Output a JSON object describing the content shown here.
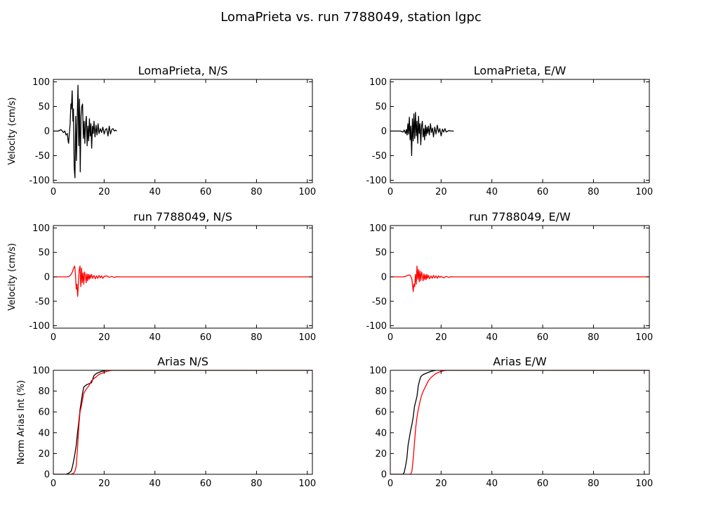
{
  "figure": {
    "title": "LomaPrieta vs. run 7788049, station lgpc"
  },
  "colors": {
    "recorded": "#000000",
    "simulated": "#ff0000"
  },
  "chart_data": [
    {
      "type": "line",
      "title": "LomaPrieta, N/S",
      "xlabel": "",
      "ylabel": "Velocity (cm/s)",
      "xlim": [
        0,
        102
      ],
      "ylim": [
        -105,
        105
      ],
      "xticks": [
        0,
        20,
        40,
        60,
        80,
        100
      ],
      "yticks": [
        100,
        50,
        0,
        -50,
        -100
      ],
      "grid": false,
      "series": [
        {
          "color": "#000000",
          "x": [
            0,
            2,
            3,
            4,
            4.5,
            5,
            5.5,
            5.8,
            6,
            6.3,
            6.6,
            6.9,
            7.1,
            7.4,
            7.7,
            7.9,
            8.2,
            8.5,
            8.8,
            9.1,
            9.4,
            9.7,
            10,
            10.3,
            10.6,
            10.9,
            11.2,
            11.5,
            11.8,
            12.1,
            12.4,
            12.7,
            13,
            13.3,
            13.6,
            13.9,
            14.2,
            14.5,
            14.8,
            15.1,
            15.4,
            15.7,
            16,
            16.4,
            16.8,
            17.2,
            17.6,
            18,
            18.5,
            19,
            19.5,
            20,
            20.5,
            21,
            21.5,
            22,
            22.5,
            23,
            23.5,
            24,
            24.5,
            25
          ],
          "y": [
            0,
            0,
            3,
            -3,
            0,
            -8,
            -5,
            -20,
            -25,
            -5,
            15,
            55,
            45,
            82,
            20,
            45,
            -75,
            -95,
            30,
            -60,
            25,
            93,
            -30,
            65,
            -83,
            30,
            50,
            55,
            -15,
            20,
            -25,
            15,
            30,
            -30,
            10,
            -20,
            25,
            -10,
            15,
            -35,
            10,
            -5,
            20,
            -12,
            12,
            -8,
            15,
            -5,
            5,
            -3,
            8,
            -6,
            3,
            5,
            -10,
            10,
            -6,
            3,
            5,
            0,
            2,
            0
          ]
        }
      ]
    },
    {
      "type": "line",
      "title": "LomaPrieta, E/W",
      "xlabel": "",
      "ylabel": "",
      "xlim": [
        0,
        102
      ],
      "ylim": [
        -105,
        105
      ],
      "xticks": [
        0,
        20,
        40,
        60,
        80,
        100
      ],
      "yticks": [
        100,
        50,
        0,
        -50,
        -100
      ],
      "grid": false,
      "series": [
        {
          "color": "#000000",
          "x": [
            0,
            4,
            5,
            5.5,
            6,
            6.3,
            6.6,
            6.9,
            7.2,
            7.5,
            7.8,
            8.1,
            8.4,
            8.7,
            9,
            9.3,
            9.6,
            9.9,
            10.2,
            10.5,
            10.8,
            11.1,
            11.4,
            11.7,
            12,
            12.3,
            12.6,
            12.9,
            13.2,
            13.5,
            13.8,
            14.1,
            14.4,
            14.7,
            15,
            15.4,
            15.8,
            16.2,
            16.6,
            17,
            17.5,
            18,
            18.5,
            19,
            19.5,
            20,
            20.5,
            21,
            21.5,
            22,
            23,
            24,
            25
          ],
          "y": [
            0,
            0,
            -2,
            2,
            -5,
            3,
            -8,
            15,
            -6,
            28,
            -18,
            10,
            -50,
            25,
            -20,
            35,
            -15,
            38,
            -10,
            20,
            -25,
            30,
            -5,
            15,
            -28,
            10,
            20,
            -12,
            5,
            -18,
            12,
            -10,
            8,
            -5,
            10,
            -8,
            15,
            -3,
            6,
            -12,
            8,
            -6,
            12,
            -3,
            5,
            -10,
            4,
            -2,
            5,
            -2,
            1,
            0,
            0
          ]
        }
      ]
    },
    {
      "type": "line",
      "title": "run 7788049, N/S",
      "xlabel": "",
      "ylabel": "Velocity (cm/s)",
      "xlim": [
        0,
        102
      ],
      "ylim": [
        -105,
        105
      ],
      "xticks": [
        0,
        20,
        40,
        60,
        80,
        100
      ],
      "yticks": [
        100,
        50,
        0,
        -50,
        -100
      ],
      "grid": false,
      "series": [
        {
          "color": "#ff0000",
          "x": [
            0,
            4,
            5,
            6,
            6.5,
            7,
            7.5,
            8,
            8.4,
            8.7,
            9,
            9.3,
            9.6,
            9.9,
            10.2,
            10.5,
            10.8,
            11.1,
            11.4,
            11.7,
            12,
            12.3,
            12.6,
            12.9,
            13.2,
            13.5,
            13.8,
            14.1,
            14.4,
            14.7,
            15,
            15.5,
            16,
            16.5,
            17,
            17.5,
            18,
            18.5,
            19,
            19.5,
            20,
            21,
            22,
            23,
            24,
            25,
            26,
            28,
            30,
            102
          ],
          "y": [
            0,
            0,
            0,
            0.5,
            2,
            5,
            10,
            18,
            22,
            5,
            -25,
            -15,
            -40,
            -10,
            15,
            22,
            -20,
            18,
            -12,
            8,
            -15,
            10,
            3,
            -12,
            6,
            -8,
            5,
            -5,
            4,
            -3,
            5,
            -3,
            3,
            -4,
            2,
            -3,
            3,
            -2,
            2,
            -3,
            1,
            2,
            -1,
            1,
            -1,
            0.5,
            0,
            0,
            0,
            0
          ]
        }
      ]
    },
    {
      "type": "line",
      "title": "run 7788049, E/W",
      "xlabel": "",
      "ylabel": "",
      "xlim": [
        0,
        102
      ],
      "ylim": [
        -105,
        105
      ],
      "xticks": [
        0,
        20,
        40,
        60,
        80,
        100
      ],
      "yticks": [
        100,
        50,
        0,
        -50,
        -100
      ],
      "grid": false,
      "series": [
        {
          "color": "#ff0000",
          "x": [
            0,
            4,
            5,
            6,
            7,
            7.5,
            8,
            8.5,
            9,
            9.3,
            9.6,
            9.9,
            10.2,
            10.5,
            10.8,
            11.1,
            11.4,
            11.7,
            12,
            12.3,
            12.6,
            12.9,
            13.2,
            13.5,
            13.8,
            14.1,
            14.4,
            14.7,
            15,
            15.5,
            16,
            16.5,
            17,
            17.5,
            18,
            18.5,
            19,
            19.5,
            20,
            21,
            22,
            23,
            24,
            25,
            26,
            28,
            30,
            102
          ],
          "y": [
            0,
            0,
            0,
            1,
            3,
            4,
            2,
            -5,
            -30,
            -15,
            -20,
            5,
            -15,
            22,
            -5,
            15,
            -10,
            12,
            -8,
            10,
            3,
            -8,
            6,
            -5,
            4,
            -6,
            5,
            -3,
            3,
            -4,
            2,
            -3,
            3,
            -2,
            2,
            -3,
            2,
            -1,
            1,
            -2,
            1,
            -1,
            0.5,
            0,
            0,
            0,
            0,
            0
          ]
        }
      ]
    },
    {
      "type": "line",
      "title": "Arias N/S",
      "xlabel": "",
      "ylabel": "Norm Arias Int (%)",
      "xlim": [
        0,
        102
      ],
      "ylim": [
        0,
        100
      ],
      "xticks": [
        0,
        20,
        40,
        60,
        80,
        100
      ],
      "yticks": [
        100,
        80,
        60,
        40,
        20,
        0
      ],
      "grid": false,
      "series": [
        {
          "color": "#000000",
          "x": [
            0,
            5,
            6,
            7,
            7.5,
            8,
            8.5,
            9,
            9.5,
            10,
            10.5,
            11,
            11.5,
            12,
            12.5,
            13,
            14,
            15,
            16,
            17,
            18,
            19,
            20,
            21,
            22,
            102
          ],
          "y": [
            0,
            0,
            1,
            3,
            7,
            13,
            20,
            28,
            40,
            50,
            62,
            70,
            78,
            84,
            85,
            86,
            87,
            88,
            95,
            97,
            98,
            99,
            99.5,
            100,
            100,
            100
          ]
        },
        {
          "color": "#ff0000",
          "x": [
            0,
            7,
            8,
            8.5,
            9,
            9.5,
            10,
            10.5,
            11,
            11.5,
            12,
            12.5,
            13,
            14,
            15,
            16,
            17,
            18,
            19,
            20,
            21,
            22,
            23,
            102
          ],
          "y": [
            0,
            0,
            1,
            3,
            8,
            25,
            45,
            60,
            65,
            72,
            78,
            80,
            82,
            85,
            90,
            92,
            94,
            96,
            97,
            98,
            99,
            99.5,
            100,
            100
          ]
        }
      ]
    },
    {
      "type": "line",
      "title": "Arias E/W",
      "xlabel": "",
      "ylabel": "",
      "xlim": [
        0,
        102
      ],
      "ylim": [
        0,
        100
      ],
      "xticks": [
        0,
        20,
        40,
        60,
        80,
        100
      ],
      "yticks": [
        100,
        80,
        60,
        40,
        20,
        0
      ],
      "grid": false,
      "series": [
        {
          "color": "#000000",
          "x": [
            0,
            5,
            5.5,
            6,
            6.5,
            7,
            7.5,
            8,
            8.5,
            9,
            9.5,
            10,
            10.5,
            11,
            11.5,
            12,
            12.5,
            13,
            14,
            15,
            16,
            17,
            18,
            19,
            20,
            102
          ],
          "y": [
            0,
            0,
            2,
            8,
            15,
            28,
            35,
            42,
            48,
            55,
            65,
            70,
            75,
            85,
            90,
            94,
            95,
            96,
            97,
            98,
            99,
            99.5,
            100,
            100,
            100,
            100
          ]
        },
        {
          "color": "#ff0000",
          "x": [
            0,
            8,
            8.5,
            9,
            9.5,
            10,
            10.5,
            11,
            11.5,
            12,
            12.5,
            13,
            14,
            15,
            16,
            17,
            18,
            19,
            20,
            21,
            22,
            102
          ],
          "y": [
            0,
            0,
            3,
            15,
            30,
            45,
            55,
            62,
            68,
            73,
            77,
            80,
            85,
            90,
            93,
            95,
            97,
            98,
            99,
            99.5,
            100,
            100
          ]
        }
      ]
    }
  ]
}
